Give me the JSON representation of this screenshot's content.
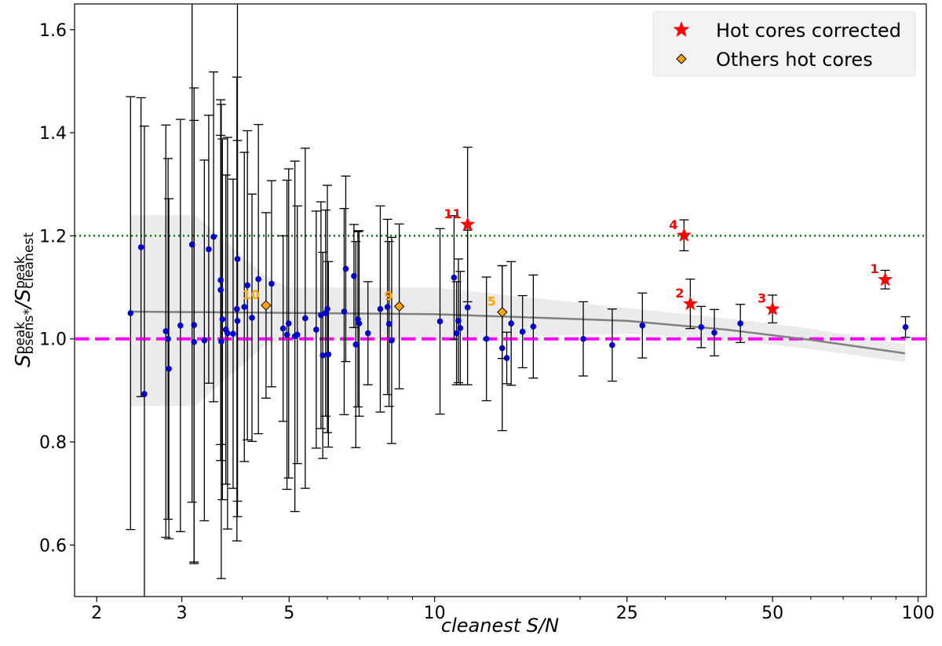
{
  "chart_data": {
    "type": "scatter",
    "xlabel": "cleanest S/N",
    "ylabel_parts": [
      "S",
      "peak",
      "bsens*",
      "/S",
      "peak",
      "cleanest"
    ],
    "xscale": "log",
    "xlim": [
      1.8,
      104
    ],
    "ylim": [
      0.5,
      1.65
    ],
    "xticks": [
      2,
      3,
      5,
      10,
      25,
      50,
      100
    ],
    "xminorticks": [
      4,
      6,
      7,
      8,
      9,
      20,
      30,
      40,
      60,
      70,
      80,
      90
    ],
    "yticks": [
      0.6,
      0.8,
      {
        "value": 1,
        "label": "1.0"
      },
      1.2,
      1.4,
      1.6
    ],
    "legend": "upper right",
    "hlines": [
      {
        "value": 1.2,
        "color": "#008000",
        "style": "dotted"
      },
      {
        "value": 1,
        "color": "#ff00ff",
        "style": "dashed"
      }
    ],
    "points": {
      "color": "#0000cd",
      "x": [
        2.35,
        2.47,
        2.51,
        2.78,
        2.81,
        2.82,
        2.98,
        3.15,
        3.18,
        3.18,
        3.34,
        3.41,
        3.49,
        3.61,
        3.61,
        3.62,
        3.64,
        3.7,
        3.73,
        3.83,
        3.9,
        3.91,
        3.91,
        4.04,
        4.1,
        4.19,
        4.32,
        4.6,
        4.86,
        4.95,
        4.99,
        5.14,
        5.2,
        5.4,
        5.69,
        5.82,
        5.87,
        5.95,
        6.0,
        6.03,
        6.5,
        6.55,
        6.81,
        6.87,
        6.94,
        6.98,
        7.28,
        7.72,
        7.99,
        8.05,
        8.15,
        10.26,
        10.97,
        11.1,
        11.2,
        11.3,
        11.7,
        12.8,
        13.8,
        14.1,
        14.4,
        15.2,
        16.0,
        20.3,
        23.3,
        26.9,
        35.6,
        37.9,
        42.9,
        94.2
      ],
      "values": [
        1.05,
        1.178,
        0.893,
        1.015,
        1.0,
        0.942,
        1.026,
        1.183,
        1.027,
        0.994,
        0.997,
        1.174,
        1.198,
        1.114,
        1.095,
        0.995,
        1.038,
        1.018,
        1.011,
        1.01,
        1.058,
        1.155,
        1.035,
        1.062,
        1.104,
        1.041,
        1.116,
        1.107,
        1.02,
        1.008,
        1.03,
        1.005,
        1.008,
        1.04,
        1.018,
        1.046,
        0.968,
        1.05,
        1.058,
        0.97,
        1.053,
        1.136,
        1.122,
        0.989,
        1.038,
        1.03,
        1.011,
        1.058,
        1.062,
        1.029,
        0.997,
        1.034,
        1.119,
        1.011,
        1.035,
        1.021,
        1.061,
        1.0,
        0.982,
        0.963,
        1.03,
        1.014,
        1.024,
        1.0,
        0.988,
        1.026,
        1.023,
        1.012,
        1.03,
        1.023
      ],
      "errors": [
        0.42,
        0.29,
        0.52,
        0.4,
        0.35,
        0.33,
        0.4,
        0.5,
        0.46,
        0.43,
        0.35,
        0.26,
        0.32,
        0.35,
        0.3,
        0.46,
        0.35,
        0.3,
        0.38,
        0.3,
        0.45,
        0.5,
        0.35,
        0.3,
        0.3,
        0.24,
        0.3,
        0.2,
        0.18,
        0.3,
        0.3,
        0.34,
        0.25,
        0.33,
        0.23,
        0.22,
        0.2,
        0.2,
        0.24,
        0.18,
        0.2,
        0.18,
        0.1,
        0.2,
        0.17,
        0.18,
        0.1,
        0.2,
        0.17,
        0.16,
        0.2,
        0.18,
        0.12,
        0.1,
        0.12,
        0.11,
        0.15,
        0.12,
        0.16,
        0.05,
        0.12,
        0.07,
        0.1,
        0.072,
        0.07,
        0.063,
        0.04,
        0.045,
        0.037,
        0.02
      ]
    },
    "series": [
      {
        "name": "Hot cores corrected",
        "color": "#ff0000",
        "marker": "star",
        "x": [
          85.5,
          33.8,
          50,
          32.8,
          11.7
        ],
        "values": [
          1.115,
          1.068,
          1.058,
          1.201,
          1.222
        ],
        "errors": [
          0.018,
          0.048,
          0.027,
          0.03,
          0.15
        ],
        "labels": [
          "1",
          "2",
          "3",
          "4",
          "11"
        ]
      },
      {
        "name": "Others hot cores",
        "color": "#ffa500",
        "marker": "diamond",
        "x": [
          4.48,
          8.45,
          13.8
        ],
        "values": [
          1.065,
          1.063,
          1.052
        ],
        "errors": [
          0.18,
          0.16,
          0.09
        ],
        "labels": [
          "10",
          "9",
          "5"
        ]
      }
    ],
    "trend": {
      "color": "#808080",
      "x": [
        2.35,
        10,
        25,
        40,
        60,
        94
      ],
      "values": [
        1.053,
        1.048,
        1.035,
        1.018,
        0.998,
        0.972
      ]
    },
    "band": {
      "color": "#e6e6e6",
      "x": [
        2.35,
        3.2,
        4.5,
        5,
        10,
        25,
        40,
        60,
        94
      ],
      "upper": [
        1.24,
        1.24,
        1.12,
        1.1,
        1.1,
        1.06,
        1.04,
        1.02,
        0.99
      ],
      "lower": [
        0.87,
        0.87,
        0.99,
        1.0,
        1.0,
        1.01,
        1.0,
        0.98,
        0.955
      ]
    }
  }
}
